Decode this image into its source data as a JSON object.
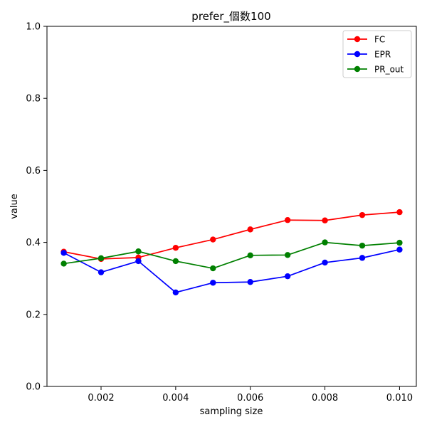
{
  "chart_data": {
    "type": "line",
    "title": "prefer_個数100",
    "xlabel": "sampling size",
    "ylabel": "value",
    "xlim": [
      0.00055,
      0.01045
    ],
    "ylim": [
      0.0,
      1.0
    ],
    "xticks": [
      0.002,
      0.004,
      0.006,
      0.008,
      0.01
    ],
    "xtick_labels": [
      "0.002",
      "0.004",
      "0.006",
      "0.008",
      "0.010"
    ],
    "yticks": [
      0.0,
      0.2,
      0.4,
      0.6,
      0.8,
      1.0
    ],
    "ytick_labels": [
      "0.0",
      "0.2",
      "0.4",
      "0.6",
      "0.8",
      "1.0"
    ],
    "x": [
      0.001,
      0.002,
      0.003,
      0.004,
      0.005,
      0.006,
      0.007,
      0.008,
      0.009,
      0.01
    ],
    "grid": false,
    "legend_position": "top-right",
    "series": [
      {
        "name": "FC",
        "color": "#ff0000",
        "marker": "circle",
        "values": [
          0.374,
          0.354,
          0.358,
          0.385,
          0.408,
          0.436,
          0.462,
          0.461,
          0.476,
          0.484
        ]
      },
      {
        "name": "EPR",
        "color": "#0000ff",
        "marker": "circle",
        "values": [
          0.371,
          0.317,
          0.348,
          0.261,
          0.288,
          0.29,
          0.306,
          0.344,
          0.357,
          0.38
        ]
      },
      {
        "name": "PR_out",
        "color": "#008000",
        "marker": "circle",
        "values": [
          0.341,
          0.356,
          0.375,
          0.348,
          0.328,
          0.364,
          0.365,
          0.4,
          0.391,
          0.399
        ]
      }
    ]
  }
}
